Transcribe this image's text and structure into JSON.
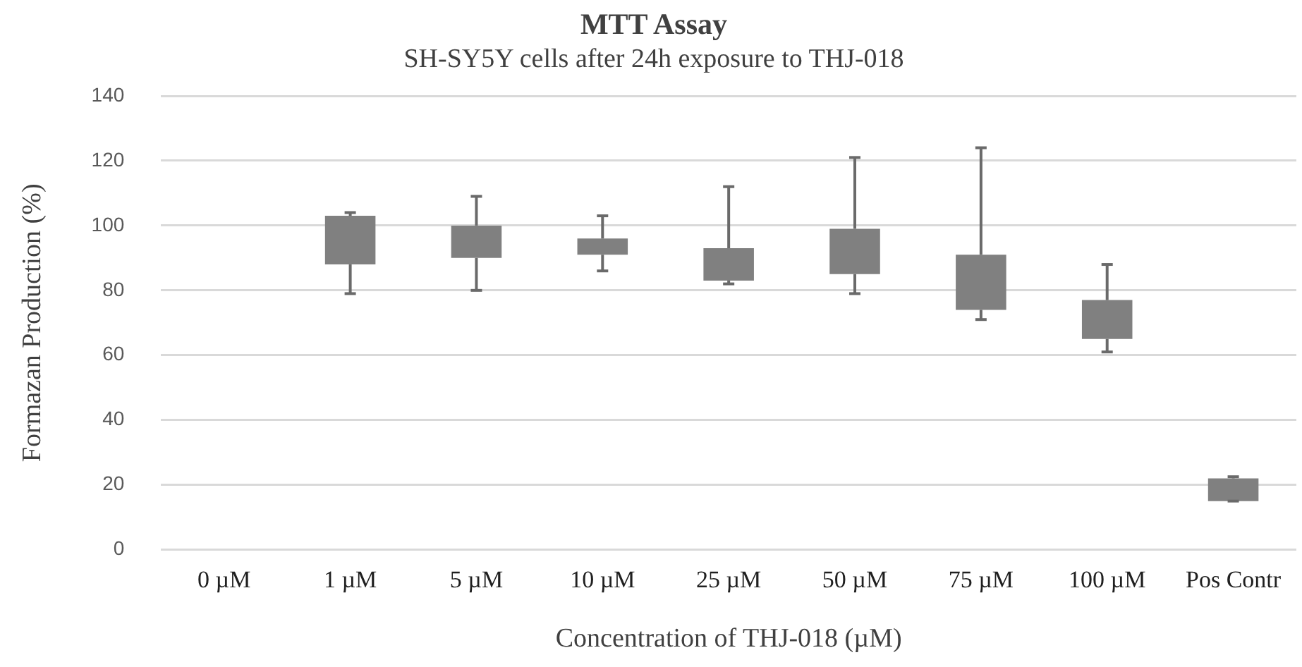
{
  "chart_data": {
    "type": "box",
    "title": "MTT Assay",
    "subtitle": "SH-SY5Y cells after 24h exposure to THJ-018",
    "xlabel": "Concentration of THJ-018 (µM)",
    "ylabel": "Formazan Production (%)",
    "categories": [
      "0 µM",
      "1 µM",
      "5 µM",
      "10 µM",
      "25 µM",
      "50 µM",
      "75 µM",
      "100 µM",
      "Pos Contr"
    ],
    "color": "#808080",
    "boxes": [
      null,
      {
        "low": 79,
        "q1": 88,
        "q3": 103,
        "high": 104
      },
      {
        "low": 80,
        "q1": 90,
        "q3": 100,
        "high": 109
      },
      {
        "low": 86,
        "q1": 91,
        "q3": 96,
        "high": 103
      },
      {
        "low": 82,
        "q1": 83,
        "q3": 93,
        "high": 112
      },
      {
        "low": 79,
        "q1": 85,
        "q3": 99,
        "high": 121
      },
      {
        "low": 71,
        "q1": 74,
        "q3": 91,
        "high": 124
      },
      {
        "low": 61,
        "q1": 65,
        "q3": 77,
        "high": 88
      },
      {
        "low": 15,
        "q1": 15,
        "q3": 22,
        "high": 22.5
      }
    ],
    "ylim": [
      0,
      140
    ],
    "yticks": [
      0,
      20,
      40,
      60,
      80,
      100,
      120,
      140
    ],
    "grid": "y",
    "legend": false
  }
}
